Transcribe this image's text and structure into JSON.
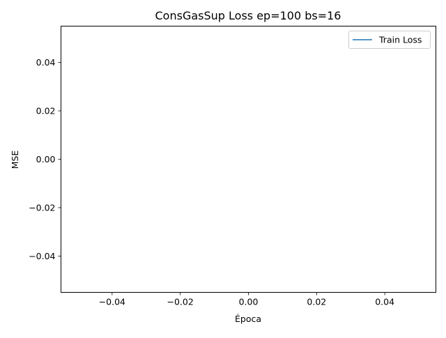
{
  "chart_data": {
    "type": "line",
    "title": "ConsGasSup Loss ep=100 bs=16",
    "xlabel": "Época",
    "ylabel": "MSE",
    "xlim": [
      -0.055,
      0.055
    ],
    "ylim": [
      -0.055,
      0.055
    ],
    "xticks": [
      -0.04,
      -0.02,
      0.0,
      0.02,
      0.04
    ],
    "xtick_labels": [
      "−0.04",
      "−0.02",
      "0.00",
      "0.02",
      "0.04"
    ],
    "yticks": [
      -0.04,
      -0.02,
      0.0,
      0.02,
      0.04
    ],
    "ytick_labels": [
      "−0.04",
      "−0.02",
      "0.00",
      "0.02",
      "0.04"
    ],
    "grid": false,
    "legend_position": "top-right",
    "series": [
      {
        "name": "Train Loss",
        "color": "#1f77b4",
        "x": [],
        "y": []
      }
    ]
  }
}
